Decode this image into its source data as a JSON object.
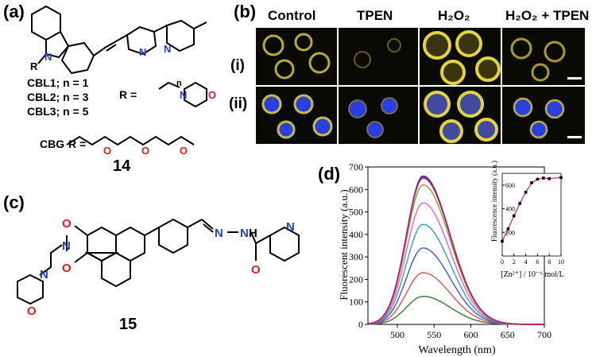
{
  "panels": {
    "a": "(a)",
    "b": "(b)",
    "c": "(c)",
    "d": "(d)"
  },
  "structure_a": {
    "compound_number": "14",
    "n_atom_label": "N",
    "r_sub": "R",
    "variants": [
      "CBL1; n = 1",
      "CBL2; n = 3",
      "CBL3; n = 5"
    ],
    "cbg_label": "CBG",
    "r_equals": "R =",
    "r_equals_2": "R =",
    "n_subscript": "n",
    "morph_n": "N",
    "morph_o": "O",
    "ether_o": [
      "O",
      "O",
      "O"
    ],
    "pyridine_n": [
      "N",
      "N"
    ]
  },
  "structure_c": {
    "compound_number": "15",
    "atoms": {
      "imide_n": "N",
      "carbonyl_o_top": "O",
      "carbonyl_o_bottom": "O",
      "morph_n": "N",
      "morph_o": "O",
      "hydrazone_n1": "N",
      "hydrazone_n2": "N",
      "nh": "H",
      "amide_o": "O",
      "pyridine_n": "N"
    }
  },
  "microscopy": {
    "columns": [
      "Control",
      "TPEN",
      "H₂O₂",
      "H₂O₂ + TPEN"
    ],
    "rows": [
      "(i)",
      "(ii)"
    ]
  },
  "spectrum": {
    "xlabel": "Wavelength (nm)",
    "ylabel": "Fluorescent intensity (a.u.)",
    "inset_ylabel": "Fluorescence intensity (a.u.)",
    "inset_xlabel": "[Zn²⁺] / 10⁻⁶ mol/L"
  },
  "chart_data": {
    "type": "line",
    "x_range": [
      460,
      700
    ],
    "ylim": [
      0,
      700
    ],
    "xticks": [
      500,
      550,
      600,
      650,
      700
    ],
    "yticks": [
      0,
      100,
      200,
      300,
      400,
      500,
      600,
      700
    ],
    "peak_x": 535,
    "series": [
      {
        "peak": 125,
        "color": "#2e7d2e"
      },
      {
        "peak": 230,
        "color": "#e84a4a"
      },
      {
        "peak": 340,
        "color": "#3b56d9"
      },
      {
        "peak": 445,
        "color": "#2aa6a6"
      },
      {
        "peak": 540,
        "color": "#e85ad6"
      },
      {
        "peak": 620,
        "color": "#9a9a2a"
      },
      {
        "peak": 650,
        "color": "#8a3fb0"
      },
      {
        "peak": 660,
        "color": "#1f2fa8"
      },
      {
        "peak": 655,
        "color": "#c2185b"
      }
    ],
    "inset": {
      "x": [
        0,
        1,
        2,
        3,
        4,
        5,
        6,
        7,
        8,
        10
      ],
      "y": [
        125,
        230,
        340,
        445,
        540,
        620,
        650,
        660,
        655,
        665
      ],
      "xlim": [
        0,
        10
      ],
      "ylim": [
        0,
        700
      ],
      "xticks": [
        0,
        2,
        4,
        6,
        8,
        10
      ],
      "yticks": [
        200,
        400,
        600
      ],
      "color": "#c62828"
    }
  },
  "colors": {
    "nitrogen": "#1f3fd6",
    "oxygen": "#e01b1b",
    "fluor_yellow": "#d8c63a",
    "nucleus_blue": "#2a3fe0"
  }
}
